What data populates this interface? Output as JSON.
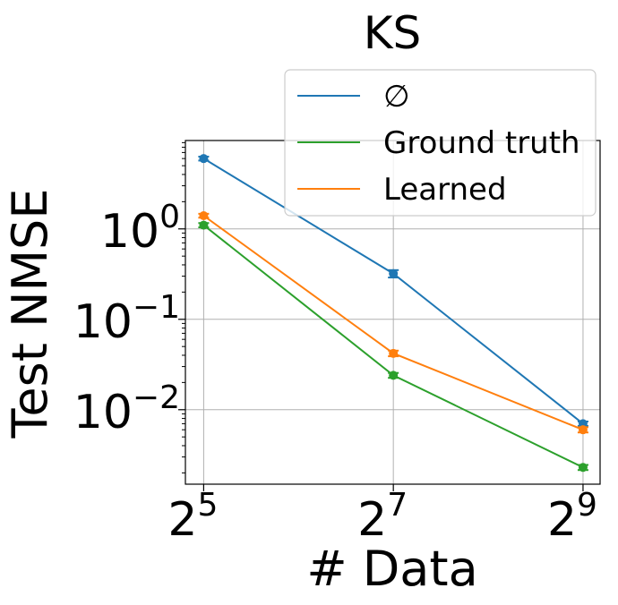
{
  "chart_data": {
    "type": "line",
    "title": "KS",
    "xlabel": "# Data",
    "ylabel": "Test NMSE",
    "x_scale": "log2",
    "y_scale": "log10",
    "x": [
      32,
      128,
      512
    ],
    "x_ticks": [
      {
        "value": 32,
        "base": "2",
        "exp": "5"
      },
      {
        "value": 128,
        "base": "2",
        "exp": "7"
      },
      {
        "value": 512,
        "base": "2",
        "exp": "9"
      }
    ],
    "y_ticks": [
      {
        "value": 1,
        "base": "10",
        "exp": "0"
      },
      {
        "value": 0.1,
        "base": "10",
        "exp": "−1"
      },
      {
        "value": 0.01,
        "base": "10",
        "exp": "−2"
      }
    ],
    "xlim": [
      28,
      580
    ],
    "ylim": [
      0.0015,
      9.5
    ],
    "grid": true,
    "legend_position": "upper-right",
    "series": [
      {
        "name": "∅",
        "color": "#1f77b4",
        "values": [
          6.0,
          0.32,
          0.007
        ],
        "err": [
          0.3,
          0.03,
          0.0004
        ]
      },
      {
        "name": "Ground truth",
        "color": "#2ca02c",
        "values": [
          1.1,
          0.024,
          0.0023
        ],
        "err": [
          0.06,
          0.0015,
          0.00015
        ]
      },
      {
        "name": "Learned",
        "color": "#ff7f0e",
        "values": [
          1.4,
          0.042,
          0.006
        ],
        "err": [
          0.07,
          0.003,
          0.0004
        ]
      }
    ]
  }
}
